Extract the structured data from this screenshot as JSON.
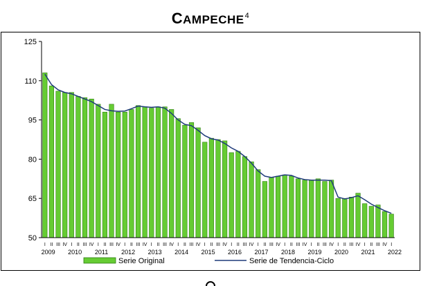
{
  "chart_data": {
    "type": "bar",
    "title_cap": "C",
    "title_rest": "AMPECHE",
    "title_sup": "4",
    "ylim": [
      50,
      125
    ],
    "yticks": [
      50,
      65,
      80,
      95,
      110,
      125
    ],
    "quarter_labels": [
      "I",
      "II",
      "III",
      "IV"
    ],
    "years": [
      "2009",
      "2010",
      "2011",
      "2012",
      "2013",
      "2014",
      "2015",
      "2016",
      "2017",
      "2018",
      "2019",
      "2020",
      "2021",
      "2022"
    ],
    "series": [
      {
        "name": "Serie Original",
        "type": "bar",
        "color": "#66cc33",
        "values": [
          113,
          108,
          106,
          105.5,
          105.5,
          104,
          103.5,
          103,
          101,
          98,
          101,
          98,
          98,
          99,
          100.5,
          100,
          99.5,
          100,
          100,
          99,
          95.5,
          93,
          94,
          92,
          86.5,
          88,
          87.5,
          87,
          82.5,
          83,
          81,
          79,
          76,
          71.5,
          73,
          73.5,
          74,
          73.5,
          72.5,
          72,
          72,
          72.5,
          71.5,
          72,
          65,
          65,
          65.5,
          67,
          63,
          62,
          62.5,
          60,
          59
        ]
      },
      {
        "name": "Serie de Tendencia-Ciclo",
        "type": "line",
        "color": "#1f3a7a",
        "values": [
          112.5,
          108.5,
          106.5,
          105.5,
          105,
          104,
          103,
          102,
          100.5,
          99,
          98.5,
          98.3,
          98.4,
          99.3,
          100.3,
          100,
          99.8,
          100,
          99.5,
          97.5,
          95,
          93.3,
          92.8,
          91,
          89,
          87.8,
          87.3,
          86,
          84.3,
          83,
          81,
          78.5,
          75.5,
          73.5,
          73,
          73.5,
          74,
          73.8,
          72.8,
          72.2,
          72,
          72,
          72,
          71.8,
          65.5,
          64.8,
          65.3,
          66,
          64.5,
          62.8,
          61.5,
          60.3,
          59.3
        ]
      }
    ],
    "legend_position": "bottom-center"
  }
}
